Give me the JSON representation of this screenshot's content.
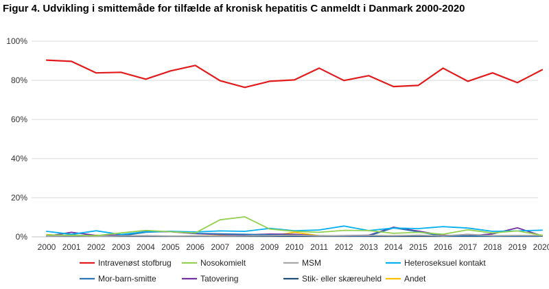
{
  "chart_data": {
    "type": "line",
    "title": "Figur 4. Udvikling i smittemåde for tilfælde af kronisk hepatitis C  anmeldt i Danmark 2000-2020",
    "xlabel": "",
    "ylabel": "",
    "x": [
      "2000",
      "2001",
      "2002",
      "2003",
      "2004",
      "2005",
      "2006",
      "2007",
      "2008",
      "2009",
      "2010",
      "2011",
      "2012",
      "2013",
      "2014",
      "2015",
      "2016",
      "2017",
      "2018",
      "2019",
      "2020"
    ],
    "ylim": [
      0,
      100
    ],
    "yticks": [
      "0%",
      "20%",
      "40%",
      "60%",
      "80%",
      "100%"
    ],
    "grid": true,
    "legend_position": "bottom",
    "series": [
      {
        "name": "Intravenøst stofbrug",
        "color": "#e31a1c",
        "values": [
          90.3,
          89.7,
          83.8,
          84.1,
          80.6,
          84.8,
          87.6,
          79.8,
          76.4,
          79.5,
          80.2,
          86.2,
          79.9,
          82.4,
          76.8,
          77.4,
          86.2,
          79.5,
          83.8,
          78.8,
          85.4
        ]
      },
      {
        "name": "Nosokomielt",
        "color": "#92d050",
        "values": [
          1.0,
          0.8,
          0.6,
          2.0,
          3.3,
          2.6,
          2.0,
          8.7,
          10.2,
          4.0,
          2.8,
          2.3,
          3.3,
          3.2,
          1.8,
          2.3,
          1.3,
          3.6,
          2.0,
          3.0,
          0.8
        ]
      },
      {
        "name": "MSM",
        "color": "#a6a6a6",
        "values": [
          0.3,
          0.5,
          0.3,
          0.5,
          0.6,
          0.4,
          0.5,
          0.4,
          0.5,
          0.6,
          0.8,
          0.5,
          0.6,
          0.7,
          0.6,
          0.8,
          0.5,
          1.3,
          0.6,
          0.7,
          0.7
        ]
      },
      {
        "name": "Heteroseksuel kontakt",
        "color": "#00b0f0",
        "values": [
          2.8,
          1.3,
          3.1,
          1.2,
          2.6,
          2.8,
          2.5,
          3.0,
          2.8,
          4.3,
          3.1,
          3.5,
          5.5,
          3.2,
          4.5,
          4.2,
          5.2,
          4.5,
          2.8,
          3.0,
          3.4
        ]
      },
      {
        "name": "Mor-barn-smitte",
        "color": "#2e75b6",
        "values": [
          0.5,
          1.0,
          0.3,
          0.5,
          2.3,
          2.8,
          1.8,
          1.5,
          1.3,
          1.0,
          0.8,
          0.5,
          0.5,
          0.5,
          4.6,
          2.6,
          0.3,
          0.5,
          0.3,
          0.4,
          0.3
        ]
      },
      {
        "name": "Tatovering",
        "color": "#7030a0",
        "values": [
          0.3,
          2.3,
          0.7,
          0.9,
          2.7,
          2.6,
          1.6,
          1.2,
          1.0,
          1.4,
          1.3,
          0.5,
          0.6,
          0.8,
          4.9,
          2.9,
          0.8,
          0.5,
          1.5,
          4.6,
          0.5
        ]
      },
      {
        "name": "Stik- eller skæreuheld",
        "color": "#1f4e79",
        "values": [
          0.3,
          0.3,
          0.3,
          0.3,
          0.3,
          0.3,
          0.3,
          0.3,
          0.3,
          0.3,
          0.3,
          0.3,
          0.3,
          0.3,
          0.3,
          0.3,
          0.3,
          0.3,
          0.3,
          0.3,
          0.3
        ]
      },
      {
        "name": "Andet",
        "color": "#ffc000",
        "values": [
          1.2,
          0.3,
          0.8,
          0.3,
          0.5,
          0.3,
          0.5,
          0.6,
          0.3,
          0.3,
          2.3,
          0.6,
          0.4,
          0.5,
          0.4,
          0.6,
          0.5,
          0.8,
          0.5,
          0.3,
          0.8
        ]
      }
    ]
  }
}
